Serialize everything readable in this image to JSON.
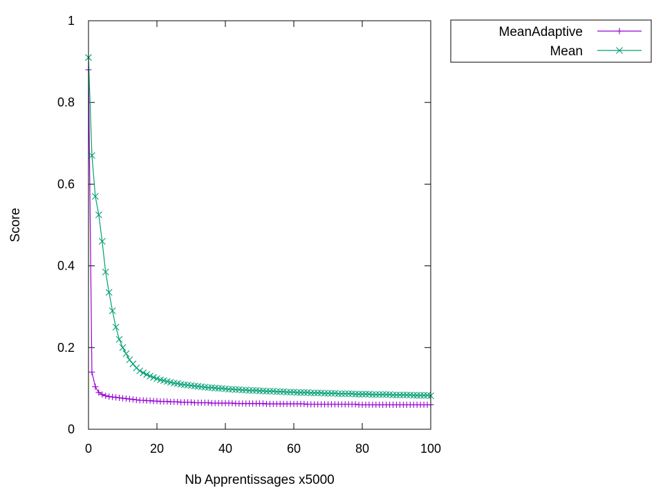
{
  "chart_data": {
    "type": "line",
    "title": "",
    "xlabel": "Nb Apprentissages x5000",
    "ylabel": "Score",
    "xlim": [
      0,
      100
    ],
    "ylim": [
      0,
      1
    ],
    "xticks": [
      0,
      20,
      40,
      60,
      80,
      100
    ],
    "yticks": [
      0,
      0.2,
      0.4,
      0.6,
      0.8,
      1
    ],
    "ytick_labels": [
      "0",
      "0.2",
      "0.4",
      "0.6",
      "0.8",
      "1"
    ],
    "grid": false,
    "legend_position": "outside-top-right",
    "x": [
      0,
      1,
      2,
      3,
      4,
      5,
      6,
      7,
      8,
      9,
      10,
      11,
      12,
      13,
      14,
      15,
      16,
      17,
      18,
      19,
      20,
      21,
      22,
      23,
      24,
      25,
      26,
      27,
      28,
      29,
      30,
      31,
      32,
      33,
      34,
      35,
      36,
      37,
      38,
      39,
      40,
      41,
      42,
      43,
      44,
      45,
      46,
      47,
      48,
      49,
      50,
      51,
      52,
      53,
      54,
      55,
      56,
      57,
      58,
      59,
      60,
      61,
      62,
      63,
      64,
      65,
      66,
      67,
      68,
      69,
      70,
      71,
      72,
      73,
      74,
      75,
      76,
      77,
      78,
      79,
      80,
      81,
      82,
      83,
      84,
      85,
      86,
      87,
      88,
      89,
      90,
      91,
      92,
      93,
      94,
      95,
      96,
      97,
      98,
      99,
      100
    ],
    "series": [
      {
        "name": "MeanAdaptive",
        "color": "#9400d3",
        "marker": "plus",
        "values": [
          0.88,
          0.14,
          0.104,
          0.09,
          0.085,
          0.082,
          0.08,
          0.079,
          0.078,
          0.077,
          0.076,
          0.075,
          0.074,
          0.073,
          0.072,
          0.071,
          0.071,
          0.07,
          0.07,
          0.069,
          0.069,
          0.068,
          0.068,
          0.068,
          0.067,
          0.067,
          0.067,
          0.066,
          0.066,
          0.066,
          0.066,
          0.065,
          0.065,
          0.065,
          0.065,
          0.065,
          0.064,
          0.064,
          0.064,
          0.064,
          0.064,
          0.064,
          0.064,
          0.063,
          0.063,
          0.063,
          0.063,
          0.063,
          0.063,
          0.063,
          0.063,
          0.063,
          0.062,
          0.062,
          0.062,
          0.062,
          0.062,
          0.062,
          0.062,
          0.062,
          0.062,
          0.062,
          0.062,
          0.062,
          0.061,
          0.061,
          0.061,
          0.061,
          0.061,
          0.061,
          0.061,
          0.061,
          0.061,
          0.061,
          0.061,
          0.061,
          0.061,
          0.061,
          0.061,
          0.06,
          0.06,
          0.06,
          0.06,
          0.06,
          0.06,
          0.06,
          0.06,
          0.06,
          0.06,
          0.06,
          0.06,
          0.06,
          0.06,
          0.06,
          0.06,
          0.06,
          0.06,
          0.06,
          0.06,
          0.06,
          0.06
        ]
      },
      {
        "name": "Mean",
        "color": "#009e73",
        "marker": "cross",
        "values": [
          0.91,
          0.67,
          0.57,
          0.525,
          0.46,
          0.385,
          0.335,
          0.29,
          0.25,
          0.22,
          0.2,
          0.185,
          0.17,
          0.16,
          0.15,
          0.143,
          0.138,
          0.134,
          0.13,
          0.127,
          0.124,
          0.121,
          0.119,
          0.117,
          0.115,
          0.113,
          0.112,
          0.11,
          0.109,
          0.108,
          0.107,
          0.106,
          0.105,
          0.104,
          0.103,
          0.102,
          0.102,
          0.101,
          0.1,
          0.1,
          0.099,
          0.098,
          0.098,
          0.097,
          0.097,
          0.096,
          0.096,
          0.095,
          0.095,
          0.095,
          0.094,
          0.094,
          0.093,
          0.093,
          0.093,
          0.092,
          0.092,
          0.092,
          0.091,
          0.091,
          0.091,
          0.09,
          0.09,
          0.09,
          0.09,
          0.089,
          0.089,
          0.089,
          0.089,
          0.088,
          0.088,
          0.088,
          0.088,
          0.087,
          0.087,
          0.087,
          0.087,
          0.087,
          0.086,
          0.086,
          0.086,
          0.086,
          0.086,
          0.085,
          0.085,
          0.085,
          0.085,
          0.085,
          0.085,
          0.084,
          0.084,
          0.084,
          0.084,
          0.084,
          0.084,
          0.083,
          0.083,
          0.083,
          0.083,
          0.083,
          0.082
        ]
      }
    ]
  }
}
